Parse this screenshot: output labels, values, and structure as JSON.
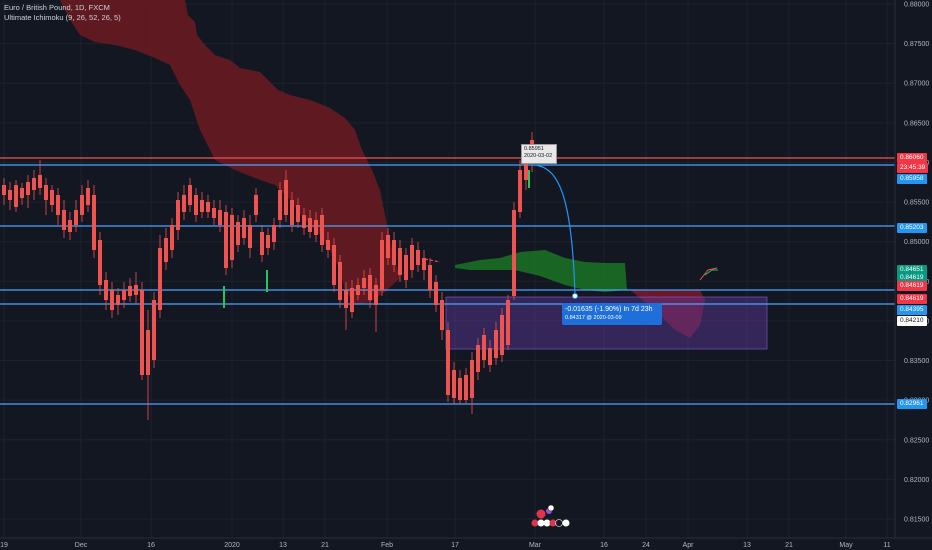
{
  "header": {
    "symbol_line": "Euro / British Pound, 1D, FXCM",
    "indicator_line": "Ultimate Ichimoku (9, 26, 52, 26, 5)"
  },
  "price_axis": {
    "ticks": [
      "0.88000",
      "0.87500",
      "0.87000",
      "0.86500",
      "0.86000",
      "0.85500",
      "0.85000",
      "0.84500",
      "0.84000",
      "0.83500",
      "0.83000",
      "0.82500",
      "0.82000",
      "0.81500"
    ]
  },
  "time_axis": {
    "ticks": [
      "19",
      "Dec",
      "16",
      "2020",
      "13",
      "21",
      "Feb",
      "17",
      "Mar",
      "16",
      "24",
      "Apr",
      "13",
      "21",
      "May",
      "11"
    ]
  },
  "badges": [
    {
      "text": "0.86060",
      "bg": "#f23645",
      "fg": "#ffffff"
    },
    {
      "text": "23:45:39",
      "bg": "#f23645",
      "fg": "#ffffff"
    },
    {
      "text": "0.85958",
      "bg": "#2196f3",
      "fg": "#ffffff"
    },
    {
      "text": "0.85203",
      "bg": "#2196f3",
      "fg": "#ffffff"
    },
    {
      "text": "0.84651",
      "bg": "#089981",
      "fg": "#ffffff"
    },
    {
      "text": "0.84619",
      "bg": "#089981",
      "fg": "#ffffff"
    },
    {
      "text": "0.84619",
      "bg": "#f23645",
      "fg": "#ffffff"
    },
    {
      "text": "0.84619",
      "bg": "#f23645",
      "fg": "#ffffff"
    },
    {
      "text": "0.84395",
      "bg": "#2196f3",
      "fg": "#ffffff"
    },
    {
      "text": "0.84210",
      "bg": "#ffffff",
      "fg": "#131722"
    },
    {
      "text": "0.82961",
      "bg": "#2196f3",
      "fg": "#ffffff"
    }
  ],
  "candle_tooltip": {
    "line1": "0.85951",
    "line2": "2020-03-02"
  },
  "projection": {
    "line1": "-0.01635 (-1.90%) In 7d 23h",
    "line2": "0.84317 @ 2020-03-09"
  },
  "colors": {
    "up": "#2196f3",
    "down": "#ef5350",
    "cloud_bear": "#801922",
    "cloud_bull": "#1b5e20",
    "zone": "#5e3a9e",
    "hline": "#4da3ff"
  }
}
